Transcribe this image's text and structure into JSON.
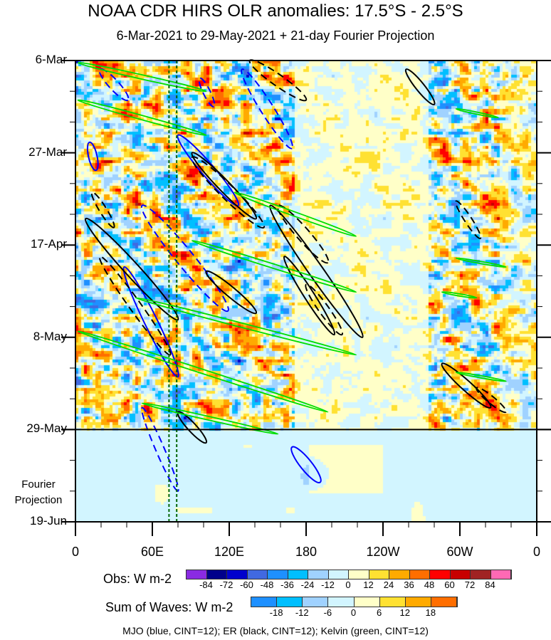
{
  "chart_data": {
    "type": "heatmap",
    "title": "NOAA CDR HIRS OLR anomalies: 17.5°S - 2.5°S",
    "subtitle": "6-Mar-2021 to 29-May-2021 + 21-day Fourier Projection",
    "xlabel": "",
    "ylabel": "",
    "x_ticks": [
      {
        "lon": 0,
        "label": "0"
      },
      {
        "lon": 60,
        "label": "60E"
      },
      {
        "lon": 120,
        "label": "120E"
      },
      {
        "lon": 180,
        "label": "180"
      },
      {
        "lon": 240,
        "label": "120W"
      },
      {
        "lon": 300,
        "label": "60W"
      },
      {
        "lon": 360,
        "label": "0"
      }
    ],
    "xlim": [
      0,
      360
    ],
    "y_ticks": [
      {
        "day": 0,
        "label": "6-Mar"
      },
      {
        "day": 21,
        "label": "27-Mar"
      },
      {
        "day": 42,
        "label": "17-Apr"
      },
      {
        "day": 63,
        "label": "8-May"
      },
      {
        "day": 84,
        "label": "29-May"
      },
      {
        "day": 105,
        "label": "19-Jun"
      }
    ],
    "ylim_days": [
      0,
      105
    ],
    "projection_start_day": 84,
    "projection_label": [
      "Fourier",
      "Projection"
    ],
    "reference_lons": [
      73,
      79
    ],
    "obs_colorbar": {
      "label": "Obs: W m-2",
      "levels": [
        "-84",
        "-72",
        "-60",
        "-48",
        "-36",
        "-24",
        "-12",
        "0",
        "12",
        "24",
        "36",
        "48",
        "60",
        "72",
        "84"
      ],
      "colors": [
        "#8a2be2",
        "#00008b",
        "#0000cd",
        "#4169e1",
        "#1e90ff",
        "#00bfff",
        "#a0d2ff",
        "#d2f5ff",
        "#ffffc8",
        "#ffe132",
        "#ffaa00",
        "#ff6e00",
        "#ff0000",
        "#c80000",
        "#a02323",
        "#ff69b4"
      ]
    },
    "waves_colorbar": {
      "label": "Sum of Waves: W m-2",
      "levels": [
        "-18",
        "-12",
        "-6",
        "0",
        "6",
        "12",
        "18"
      ],
      "colors": [
        "#1e90ff",
        "#00bfff",
        "#a0d2ff",
        "#d2f5ff",
        "#ffffc8",
        "#ffe132",
        "#ffaa00",
        "#ff6e00"
      ]
    },
    "contour_caption": "MJO (blue, CINT=12); ER (black, CINT=12); Kelvin (green, CINT=12)",
    "contour_colors": {
      "mjo": "#0000ff",
      "er": "#000000",
      "kelvin": "#00dd00"
    },
    "contours": [
      {
        "wave": "mjo",
        "sign": "pos",
        "lon1": 11,
        "day1": 18.6,
        "lon2": 16,
        "day2": 25,
        "w": 6
      },
      {
        "wave": "mjo",
        "sign": "pos",
        "lon1": 80,
        "day1": 17,
        "lon2": 127,
        "day2": 33,
        "w": 9
      },
      {
        "wave": "mjo",
        "sign": "pos",
        "lon1": 38,
        "day1": 47,
        "lon2": 80,
        "day2": 72,
        "w": 9
      },
      {
        "wave": "mjo",
        "sign": "pos",
        "lon1": 169,
        "day1": 88,
        "lon2": 191,
        "day2": 96,
        "w": 8
      },
      {
        "wave": "mjo",
        "sign": "neg",
        "lon1": 19,
        "day1": 2,
        "lon2": 41,
        "day2": 9,
        "w": 7
      },
      {
        "wave": "mjo",
        "sign": "neg",
        "lon1": 130,
        "day1": 2,
        "lon2": 169,
        "day2": 20,
        "w": 9
      },
      {
        "wave": "mjo",
        "sign": "neg",
        "lon1": 52,
        "day1": 33,
        "lon2": 119,
        "day2": 57,
        "w": 12
      },
      {
        "wave": "mjo",
        "sign": "neg",
        "lon1": 52,
        "day1": 79,
        "lon2": 80,
        "day2": 98,
        "w": 6
      },
      {
        "wave": "mjo",
        "sign": "neg",
        "lon1": 97,
        "day1": 4,
        "lon2": 108,
        "day2": 10.5,
        "w": 5
      },
      {
        "wave": "er",
        "sign": "pos",
        "lon1": 258,
        "day1": 2,
        "lon2": 280,
        "day2": 10,
        "w": 6
      },
      {
        "wave": "er",
        "sign": "pos",
        "lon1": 91,
        "day1": 21,
        "lon2": 141,
        "day2": 36,
        "w": 8
      },
      {
        "wave": "er",
        "sign": "pos",
        "lon1": 8,
        "day1": 36,
        "lon2": 80,
        "day2": 59,
        "w": 10
      },
      {
        "wave": "er",
        "sign": "pos",
        "lon1": 102,
        "day1": 48,
        "lon2": 141,
        "day2": 57.5,
        "w": 7
      },
      {
        "wave": "er",
        "sign": "pos",
        "lon1": 152,
        "day1": 33,
        "lon2": 224,
        "day2": 63,
        "w": 10
      },
      {
        "wave": "er",
        "sign": "pos",
        "lon1": 163,
        "day1": 44.6,
        "lon2": 202,
        "day2": 62.4,
        "w": 7
      },
      {
        "wave": "er",
        "sign": "pos",
        "lon1": 286,
        "day1": 69,
        "lon2": 324,
        "day2": 79,
        "w": 7
      },
      {
        "wave": "er",
        "sign": "pos",
        "lon1": 80,
        "day1": 80,
        "lon2": 102,
        "day2": 87,
        "w": 6
      },
      {
        "wave": "er",
        "sign": "neg",
        "lon1": 13,
        "day1": 30,
        "lon2": 30,
        "day2": 38,
        "w": 5
      },
      {
        "wave": "er",
        "sign": "neg",
        "lon1": 136,
        "day1": 0,
        "lon2": 180,
        "day2": 9,
        "w": 8
      },
      {
        "wave": "er",
        "sign": "neg",
        "lon1": 91,
        "day1": 22,
        "lon2": 147,
        "day2": 38,
        "w": 10
      },
      {
        "wave": "er",
        "sign": "neg",
        "lon1": 158,
        "day1": 33,
        "lon2": 197,
        "day2": 46,
        "w": 9
      },
      {
        "wave": "er",
        "sign": "neg",
        "lon1": 180,
        "day1": 51,
        "lon2": 208,
        "day2": 62.4,
        "w": 7
      },
      {
        "wave": "er",
        "sign": "neg",
        "lon1": 297,
        "day1": 32,
        "lon2": 316,
        "day2": 40.5,
        "w": 5
      },
      {
        "wave": "er",
        "sign": "neg",
        "lon1": 313,
        "day1": 74.5,
        "lon2": 336,
        "day2": 80,
        "w": 5
      },
      {
        "wave": "er",
        "sign": "neg",
        "lon1": 19,
        "day1": 44.6,
        "lon2": 74,
        "day2": 67,
        "w": 8
      },
      {
        "wave": "kelvin",
        "sign": "pos",
        "lon1": 2,
        "day1": 0.5,
        "lon2": 102,
        "day2": 7,
        "w": 3
      },
      {
        "wave": "kelvin",
        "sign": "pos",
        "lon1": 2,
        "day1": 9,
        "lon2": 102,
        "day2": 17,
        "w": 3
      },
      {
        "wave": "kelvin",
        "sign": "pos",
        "lon1": 124,
        "day1": 30,
        "lon2": 219,
        "day2": 40,
        "w": 3
      },
      {
        "wave": "kelvin",
        "sign": "pos",
        "lon1": 91,
        "day1": 41,
        "lon2": 219,
        "day2": 52.7,
        "w": 3
      },
      {
        "wave": "kelvin",
        "sign": "pos",
        "lon1": 47,
        "day1": 54,
        "lon2": 219,
        "day2": 67,
        "w": 3
      },
      {
        "wave": "kelvin",
        "sign": "pos",
        "lon1": 2,
        "day1": 61.6,
        "lon2": 197,
        "day2": 80,
        "w": 3
      },
      {
        "wave": "kelvin",
        "sign": "pos",
        "lon1": 52,
        "day1": 78,
        "lon2": 158,
        "day2": 85,
        "w": 2.5
      },
      {
        "wave": "kelvin",
        "sign": "pos",
        "lon1": 297,
        "day1": 45,
        "lon2": 336,
        "day2": 47,
        "w": 1.5
      },
      {
        "wave": "kelvin",
        "sign": "pos",
        "lon1": 286,
        "day1": 52.7,
        "lon2": 313,
        "day2": 54,
        "w": 1.5
      },
      {
        "wave": "kelvin",
        "sign": "pos",
        "lon1": 297,
        "day1": 71,
        "lon2": 336,
        "day2": 73,
        "w": 1.5
      },
      {
        "wave": "kelvin",
        "sign": "pos",
        "lon1": 297,
        "day1": 11,
        "lon2": 330,
        "day2": 13,
        "w": 1.5
      }
    ]
  }
}
